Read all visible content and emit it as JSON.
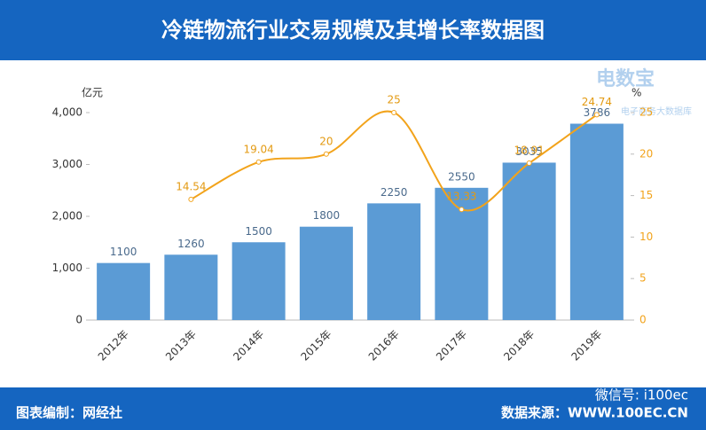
{
  "chart_data": {
    "type": "combo",
    "title": "冷链物流行业交易规模及其增长率数据图",
    "y_label": "亿元",
    "y2_label": "%",
    "categories": [
      "2012年",
      "2013年",
      "2014年",
      "2015年",
      "2016年",
      "2017年",
      "2018年",
      "2019年"
    ],
    "series": [
      {
        "type": "bar",
        "color": "#5b9bd5",
        "values": [
          1100,
          1260,
          1500,
          1800,
          2250,
          2550,
          3035,
          3786
        ]
      },
      {
        "type": "line",
        "axis": "y2",
        "color": "#f2a31b",
        "values": [
          null,
          14.54,
          19.04,
          20,
          25,
          13.33,
          18.91,
          24.74
        ]
      }
    ],
    "ylim": [
      0,
      4000
    ],
    "yticks": [
      0,
      {
        "value": 1000,
        "label": "1,000"
      },
      {
        "value": 2000,
        "label": "2,000"
      },
      {
        "value": 3000,
        "label": "3,000"
      },
      {
        "value": 4000,
        "label": "4,000"
      }
    ],
    "y2lim": [
      0,
      25
    ],
    "y2ticks": [
      0,
      5,
      10,
      15,
      20,
      25
    ],
    "grid": false
  },
  "watermark": {
    "brand": "电数宝",
    "sub": "电子商务大数据库"
  },
  "footer": {
    "left": "图表编制：网经社",
    "wechat": "微信号: i100ec",
    "right": "数据来源：WWW.100EC.CN"
  }
}
